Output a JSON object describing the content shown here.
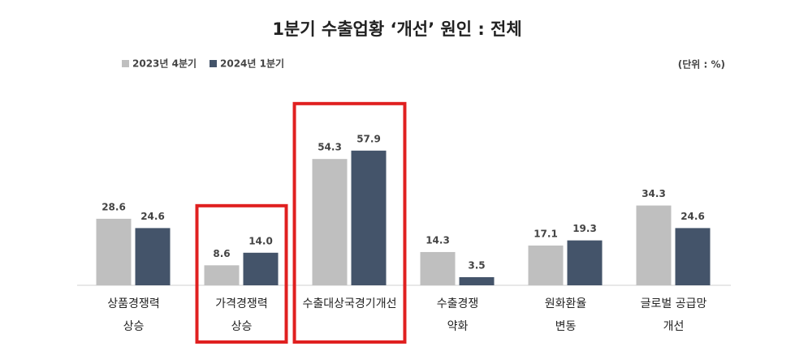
{
  "chart_data": {
    "type": "bar",
    "title": "1분기 수출업황 ‘개선’ 원인 : 전체",
    "unit_note": "(단위 : %)",
    "categories": [
      [
        "상품경쟁력",
        "상승"
      ],
      [
        "가격경쟁력",
        "상승"
      ],
      [
        "수출대상국경기개선"
      ],
      [
        "수출경쟁",
        "약화"
      ],
      [
        "원화환율",
        "변동"
      ],
      [
        "글로벌 공급망",
        "개선"
      ]
    ],
    "series": [
      {
        "name": "2023년 4분기",
        "color": "#bfbfbf",
        "values": [
          28.6,
          8.6,
          54.3,
          14.3,
          17.1,
          34.3
        ]
      },
      {
        "name": "2024년 1분기",
        "color": "#44546a",
        "values": [
          24.6,
          14.0,
          57.9,
          3.5,
          19.3,
          24.6
        ],
        "value_labels": [
          "24.6",
          "14.0",
          "57.9",
          "3.5",
          "19.3",
          "24.6"
        ]
      }
    ],
    "highlight": [
      1,
      2
    ],
    "highlight_color": "#e02020"
  }
}
